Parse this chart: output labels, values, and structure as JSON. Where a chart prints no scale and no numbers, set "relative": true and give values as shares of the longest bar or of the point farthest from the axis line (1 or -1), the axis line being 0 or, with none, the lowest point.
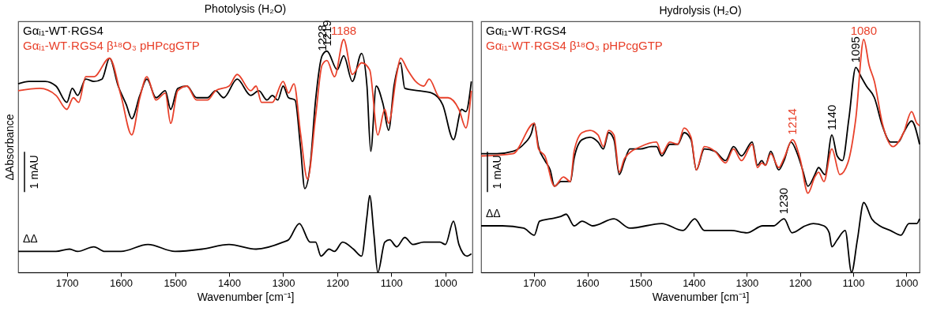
{
  "chart_data": [
    {
      "type": "line",
      "title": "Photolysis (H₂O)",
      "xlabel": "Wavenumber [cm⁻¹]",
      "ylabel": "ΔAbsorbance",
      "relative": true,
      "legend": "top left",
      "xlim": [
        1790,
        950
      ],
      "xticks": [
        1700,
        1600,
        1500,
        1400,
        1300,
        1200,
        1100,
        1000
      ],
      "series": [
        {
          "name": "Gαᵢ₁-WT·RGS4",
          "color": "#000000",
          "x": [
            1790,
            1770,
            1740,
            1720,
            1700,
            1690,
            1680,
            1665,
            1650,
            1635,
            1621,
            1605,
            1590,
            1580,
            1565,
            1552,
            1535,
            1518,
            1508,
            1495,
            1478,
            1460,
            1440,
            1425,
            1410,
            1385,
            1360,
            1345,
            1330,
            1320,
            1310,
            1300,
            1290,
            1278,
            1268,
            1260,
            1250,
            1240,
            1228,
            1219,
            1200,
            1188,
            1172,
            1155,
            1145,
            1138,
            1128,
            1115,
            1105,
            1095,
            1083,
            1075,
            1050,
            1025,
            1005,
            985,
            970,
            962,
            952
          ],
          "values": [
            0.81,
            0.82,
            0.82,
            0.8,
            0.73,
            0.79,
            0.76,
            0.83,
            0.82,
            0.83,
            0.92,
            0.8,
            0.72,
            0.66,
            0.76,
            0.83,
            0.75,
            0.78,
            0.7,
            0.79,
            0.8,
            0.75,
            0.75,
            0.78,
            0.75,
            0.83,
            0.76,
            0.78,
            0.74,
            0.76,
            0.74,
            0.8,
            0.75,
            0.74,
            0.54,
            0.36,
            0.46,
            0.74,
            0.93,
            0.95,
            0.87,
            0.93,
            0.82,
            0.94,
            0.8,
            0.52,
            0.8,
            0.72,
            0.61,
            0.8,
            0.9,
            0.79,
            0.78,
            0.77,
            0.72,
            0.57,
            0.7,
            0.69,
            0.82
          ]
        },
        {
          "name": "Gαᵢ₁-WT·RGS4 β¹⁸O₃ pHPcgGTP",
          "color": "#e8402a",
          "x": [
            1790,
            1750,
            1720,
            1700,
            1688,
            1678,
            1665,
            1650,
            1621,
            1600,
            1580,
            1565,
            1552,
            1535,
            1518,
            1508,
            1495,
            1478,
            1460,
            1440,
            1425,
            1400,
            1385,
            1360,
            1350,
            1340,
            1320,
            1300,
            1290,
            1280,
            1268,
            1255,
            1240,
            1228,
            1219,
            1205,
            1188,
            1172,
            1155,
            1140,
            1125,
            1112,
            1105,
            1090,
            1083,
            1070,
            1055,
            1040,
            1030,
            1010,
            995,
            975,
            962,
            952
          ],
          "values": [
            0.78,
            0.79,
            0.76,
            0.7,
            0.75,
            0.73,
            0.84,
            0.84,
            0.92,
            0.76,
            0.59,
            0.75,
            0.84,
            0.74,
            0.77,
            0.64,
            0.78,
            0.8,
            0.74,
            0.74,
            0.78,
            0.8,
            0.85,
            0.78,
            0.8,
            0.73,
            0.73,
            0.82,
            0.77,
            0.81,
            0.6,
            0.4,
            0.67,
            0.89,
            0.91,
            0.84,
            1.0,
            0.85,
            0.9,
            0.87,
            0.59,
            0.7,
            0.64,
            0.85,
            0.92,
            0.87,
            0.82,
            0.8,
            0.83,
            0.75,
            0.75,
            0.7,
            0.62,
            0.78
          ]
        },
        {
          "color": "#000000",
          "x": [
            1790,
            1720,
            1695,
            1680,
            1650,
            1630,
            1600,
            1550,
            1500,
            1450,
            1400,
            1350,
            1300,
            1290,
            1270,
            1250,
            1240,
            1230,
            1215,
            1205,
            1190,
            1170,
            1155,
            1145,
            1140,
            1132,
            1125,
            1112,
            1103,
            1090,
            1075,
            1060,
            1040,
            1010,
            1000,
            985,
            975,
            960,
            952
          ],
          "values": [
            0.09,
            0.09,
            0.1,
            0.09,
            0.11,
            0.09,
            0.09,
            0.12,
            0.09,
            0.1,
            0.12,
            0.1,
            0.13,
            0.14,
            0.21,
            0.13,
            0.13,
            0.07,
            0.1,
            0.09,
            0.13,
            0.1,
            0.07,
            0.24,
            0.33,
            0.16,
            0.0,
            0.13,
            0.14,
            0.11,
            0.15,
            0.12,
            0.13,
            0.13,
            0.12,
            0.22,
            0.12,
            0.07,
            0.08
          ]
        }
      ],
      "annotations": [
        {
          "text": "1228",
          "x": 1228,
          "y": 0.93
        },
        {
          "text": "1219",
          "x": 1219,
          "y": 0.95
        },
        {
          "text": "1188",
          "x": 1188,
          "y": 1.0
        },
        "ΔΔ",
        "1 mAU"
      ]
    },
    {
      "type": "line",
      "title": "Hydrolysis (H₂O)",
      "xlabel": "Wavenumber [cm⁻¹]",
      "relative": true,
      "legend": "top left",
      "xlim": [
        1800,
        975
      ],
      "xticks": [
        1700,
        1600,
        1500,
        1400,
        1300,
        1200,
        1100,
        1000
      ],
      "series": [
        {
          "name": "Gαᵢ₁-WT·RGS4",
          "color": "#000000",
          "x": [
            1800,
            1770,
            1740,
            1720,
            1705,
            1700,
            1692,
            1680,
            1670,
            1662,
            1650,
            1640,
            1632,
            1625,
            1610,
            1595,
            1580,
            1570,
            1560,
            1550,
            1540,
            1530,
            1520,
            1500,
            1480,
            1470,
            1460,
            1445,
            1430,
            1418,
            1405,
            1395,
            1380,
            1360,
            1340,
            1325,
            1310,
            1290,
            1280,
            1272,
            1265,
            1255,
            1240,
            1230,
            1217,
            1205,
            1195,
            1185,
            1172,
            1165,
            1153,
            1140,
            1130,
            1120,
            1108,
            1095,
            1085,
            1075,
            1060,
            1045,
            1030,
            1015,
            1005,
            990,
            975
          ],
          "values": [
            0.51,
            0.51,
            0.52,
            0.55,
            0.6,
            0.64,
            0.54,
            0.48,
            0.44,
            0.37,
            0.39,
            0.39,
            0.39,
            0.49,
            0.57,
            0.58,
            0.56,
            0.53,
            0.6,
            0.57,
            0.42,
            0.48,
            0.53,
            0.53,
            0.54,
            0.54,
            0.5,
            0.55,
            0.55,
            0.6,
            0.57,
            0.44,
            0.53,
            0.52,
            0.48,
            0.54,
            0.5,
            0.56,
            0.46,
            0.48,
            0.46,
            0.52,
            0.44,
            0.48,
            0.56,
            0.51,
            0.44,
            0.37,
            0.42,
            0.45,
            0.42,
            0.59,
            0.5,
            0.48,
            0.66,
            0.88,
            0.84,
            0.8,
            0.75,
            0.63,
            0.56,
            0.56,
            0.6,
            0.65,
            0.55
          ]
        },
        {
          "name": "Gαᵢ₁-WT·RGS4 β¹⁸O₃ pHPcgGTP",
          "color": "#e8402a",
          "x": [
            1800,
            1740,
            1700,
            1692,
            1680,
            1662,
            1645,
            1632,
            1625,
            1610,
            1595,
            1580,
            1570,
            1560,
            1550,
            1540,
            1530,
            1500,
            1470,
            1460,
            1445,
            1430,
            1418,
            1405,
            1395,
            1380,
            1360,
            1340,
            1325,
            1310,
            1290,
            1280,
            1272,
            1265,
            1255,
            1240,
            1230,
            1214,
            1200,
            1185,
            1172,
            1165,
            1155,
            1140,
            1125,
            1110,
            1095,
            1080,
            1070,
            1060,
            1045,
            1025,
            1005,
            990,
            980,
            975
          ],
          "values": [
            0.5,
            0.51,
            0.64,
            0.53,
            0.5,
            0.37,
            0.41,
            0.39,
            0.52,
            0.6,
            0.61,
            0.59,
            0.54,
            0.61,
            0.59,
            0.43,
            0.49,
            0.54,
            0.56,
            0.51,
            0.56,
            0.55,
            0.62,
            0.58,
            0.44,
            0.54,
            0.52,
            0.47,
            0.53,
            0.48,
            0.55,
            0.45,
            0.47,
            0.46,
            0.51,
            0.45,
            0.49,
            0.57,
            0.49,
            0.34,
            0.41,
            0.43,
            0.39,
            0.53,
            0.42,
            0.47,
            0.66,
            1.0,
            0.89,
            0.82,
            0.64,
            0.54,
            0.6,
            0.69,
            0.64,
            0.63
          ]
        },
        {
          "color": "#000000",
          "x": [
            1800,
            1760,
            1720,
            1700,
            1690,
            1670,
            1650,
            1640,
            1625,
            1610,
            1590,
            1550,
            1520,
            1460,
            1420,
            1398,
            1380,
            1330,
            1300,
            1270,
            1250,
            1230,
            1215,
            1190,
            1175,
            1155,
            1145,
            1140,
            1130,
            1115,
            1103,
            1092,
            1080,
            1065,
            1050,
            1030,
            1010,
            995,
            980,
            975
          ],
          "values": [
            0.2,
            0.2,
            0.19,
            0.16,
            0.22,
            0.23,
            0.24,
            0.25,
            0.2,
            0.22,
            0.2,
            0.23,
            0.19,
            0.21,
            0.18,
            0.23,
            0.18,
            0.18,
            0.17,
            0.2,
            0.2,
            0.23,
            0.17,
            0.2,
            0.21,
            0.2,
            0.17,
            0.11,
            0.14,
            0.18,
            0.0,
            0.14,
            0.3,
            0.23,
            0.2,
            0.18,
            0.16,
            0.21,
            0.21,
            0.23
          ]
        }
      ],
      "annotations": [
        {
          "text": "1230",
          "x": 1230,
          "y": 0.23
        },
        {
          "text": "1214",
          "x": 1214,
          "y": 0.57
        },
        {
          "text": "1140",
          "x": 1140,
          "y": 0.59
        },
        {
          "text": "1095",
          "x": 1095,
          "y": 0.88
        },
        {
          "text": "1080",
          "x": 1080,
          "y": 1.0
        },
        "ΔΔ",
        "1 mAU"
      ]
    }
  ]
}
